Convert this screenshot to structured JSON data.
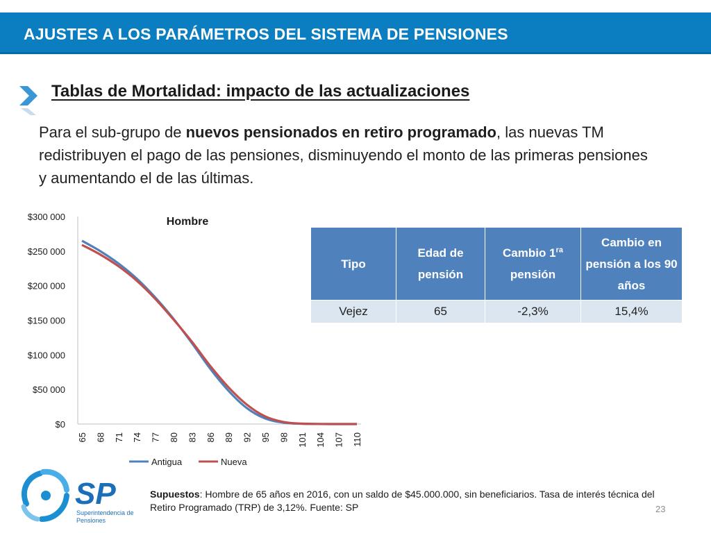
{
  "header": {
    "title": "AJUSTES A LOS PARÁMETROS DEL SISTEMA DE PENSIONES"
  },
  "subtitle": "Tablas de Mortalidad: impacto de las actualizaciones",
  "paragraph": {
    "p1": "Para el sub-grupo de ",
    "bold": "nuevos pensionados en retiro programado",
    "p2": ", las nuevas TM redistribuyen el pago de las pensiones, disminuyendo el monto de las primeras pensiones y aumentando el de las últimas."
  },
  "table": {
    "headers": [
      "Tipo",
      "Edad de pensión",
      "Cambio 1ra pensión",
      "Cambio en pensión a los 90 años"
    ],
    "header3_main": "Cambio 1",
    "header3_sup": "ra",
    "header3_tail": "pensión",
    "rows": [
      [
        "Vejez",
        "65",
        "-2,3%",
        "15,4%"
      ]
    ]
  },
  "chart_data": {
    "type": "line",
    "title": "Hombre",
    "ylim": [
      0,
      300000
    ],
    "ytick_labels": [
      "$0",
      "$50 000",
      "$100 000",
      "$150 000",
      "$200 000",
      "$250 000",
      "$300 000"
    ],
    "xtick_labels": [
      "65",
      "68",
      "71",
      "74",
      "77",
      "80",
      "83",
      "86",
      "89",
      "92",
      "95",
      "98",
      "101",
      "104",
      "107",
      "110"
    ],
    "x": [
      65,
      68,
      71,
      74,
      77,
      80,
      83,
      86,
      89,
      92,
      95,
      98,
      101,
      104,
      107,
      110
    ],
    "series": [
      {
        "name": "Antigua",
        "color": "#4f81bd",
        "values": [
          265000,
          250000,
          232000,
          210000,
          183000,
          152000,
          117000,
          80000,
          48000,
          23000,
          8000,
          2000,
          400,
          50,
          0,
          0
        ]
      },
      {
        "name": "Nueva",
        "color": "#c0504d",
        "values": [
          259000,
          245000,
          228000,
          207000,
          181000,
          151000,
          119000,
          84000,
          53000,
          28000,
          11000,
          3000,
          600,
          80,
          0,
          0
        ]
      }
    ],
    "legend_position": "bottom",
    "grid": false
  },
  "footnote": {
    "label": "Supuestos",
    "text": ": Hombre de 65 años en 2016, con un saldo de $45.000.000, sin beneficiarios. Tasa de interés técnica del Retiro Programado (TRP) de 3,12%. Fuente: SP"
  },
  "logo": {
    "abbr": "SP",
    "line1": "Superintendencia de",
    "line2": "Pensiones"
  },
  "page_number": "23",
  "colors": {
    "header_bg": "#0b7dc1",
    "table_header": "#4f81bd",
    "table_row": "#dce6f1",
    "antigua": "#4f81bd",
    "nueva": "#c0504d"
  }
}
